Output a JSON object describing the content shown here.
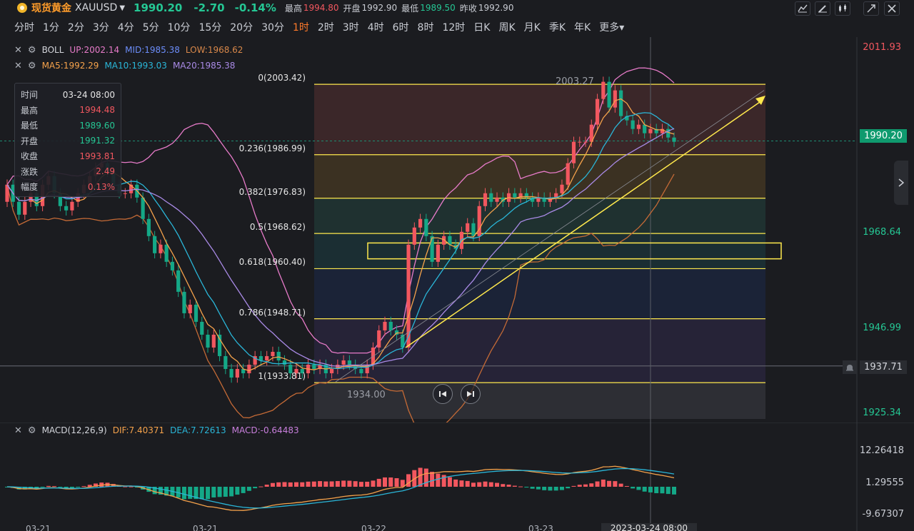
{
  "header": {
    "name": "现货黄金",
    "code": "XAUUSD",
    "price": "1990.20",
    "change": "-2.70",
    "change_pct": "-0.14%",
    "high_label": "最高",
    "high": "1994.80",
    "open_label": "开盘",
    "open": "1992.90",
    "low_label": "最低",
    "low": "1989.50",
    "prev_label": "昨收",
    "prev": "1992.90"
  },
  "timeframes": [
    "分时",
    "1分",
    "2分",
    "3分",
    "4分",
    "5分",
    "10分",
    "15分",
    "20分",
    "30分",
    "1时",
    "2时",
    "3时",
    "4时",
    "6时",
    "8时",
    "12时",
    "日K",
    "周K",
    "月K",
    "季K",
    "年K",
    "更多▾"
  ],
  "active_timeframe": "1时",
  "boll": {
    "name": "BOLL",
    "up": "UP:2002.14",
    "mid": "MID:1985.38",
    "low": "LOW:1968.62"
  },
  "ma": {
    "ma5": "MA5:1992.29",
    "ma10": "MA10:1993.03",
    "ma20": "MA20:1985.38"
  },
  "tooltip": {
    "rows": [
      {
        "k": "时间",
        "v": "03-24 08:00",
        "c": "#e6e6e6"
      },
      {
        "k": "最高",
        "v": "1994.48",
        "c": "#f2575f"
      },
      {
        "k": "最低",
        "v": "1989.60",
        "c": "#25c794"
      },
      {
        "k": "开盘",
        "v": "1991.32",
        "c": "#25c794"
      },
      {
        "k": "收盘",
        "v": "1993.81",
        "c": "#f2575f"
      },
      {
        "k": "涨跌",
        "v": "2.49",
        "c": "#f2575f"
      },
      {
        "k": "幅度",
        "v": "0.13%",
        "c": "#f2575f"
      }
    ]
  },
  "price_axis": [
    "2011.93",
    "1968.64",
    "1946.99",
    "1925.34"
  ],
  "current_price_tag": "1990.20",
  "line_price_tag": "1937.71",
  "high_mark": "2003.27",
  "low_mark": "1934.00",
  "macd": {
    "name": "MACD(12,26,9)",
    "dif": "DIF:7.40371",
    "dea": "DEA:7.72613",
    "macd": "MACD:-0.64483"
  },
  "macd_axis": [
    "12.26418",
    "1.29555",
    "-9.67307"
  ],
  "dates": [
    "03-21",
    "03-21",
    "03-22",
    "03-23"
  ],
  "crosshair_date": "2023-03-24 08:00",
  "colors": {
    "up": "#f2575f",
    "down": "#14a887",
    "ma5": "#f5a24b",
    "ma10": "#2ab6d8",
    "ma20": "#a98ae6",
    "fib": "#ffe94d",
    "boll_up": "#e77bc9",
    "boll_low": "#c46a36"
  },
  "chart_data": {
    "type": "candlestick",
    "title": "现货黄金 XAUUSD 1时",
    "ylim": [
      1925.34,
      2011.93
    ],
    "fibonacci": [
      {
        "ratio": "0",
        "price": 2003.42
      },
      {
        "ratio": "0.236",
        "price": 1986.99
      },
      {
        "ratio": "0.382",
        "price": 1976.83
      },
      {
        "ratio": "0.5",
        "price": 1968.62
      },
      {
        "ratio": "0.618",
        "price": 1960.4
      },
      {
        "ratio": "0.786",
        "price": 1948.71
      },
      {
        "ratio": "1",
        "price": 1933.81
      }
    ],
    "closes": [
      1980,
      1976,
      1973,
      1976,
      1978,
      1975,
      1980,
      1982,
      1978,
      1975,
      1974,
      1976,
      1978,
      1980,
      1982,
      1984,
      1985,
      1983,
      1980,
      1978,
      1978,
      1980,
      1977,
      1972,
      1968,
      1964,
      1966,
      1962,
      1960,
      1955,
      1950,
      1952,
      1948,
      1945,
      1942,
      1945,
      1940,
      1937,
      1935,
      1937,
      1936,
      1938,
      1940,
      1939,
      1940,
      1941,
      1939,
      1938,
      1936,
      1937,
      1936,
      1938,
      1937,
      1938,
      1936,
      1937,
      1938,
      1939,
      1938,
      1937,
      1936,
      1938,
      1942,
      1946,
      1948,
      1946,
      1945,
      1942,
      1966,
      1970,
      1972,
      1968,
      1962,
      1966,
      1968,
      1966,
      1965,
      1969,
      1971,
      1968,
      1975,
      1978,
      1976,
      1977,
      1976,
      1978,
      1977,
      1978,
      1977,
      1976,
      1977,
      1976,
      1977,
      1978,
      1980,
      1985,
      1990,
      1990,
      1990,
      1994,
      2000,
      2004,
      1998,
      2002,
      1996,
      1995,
      1993,
      1994,
      1992,
      1993,
      1992,
      1993,
      1991,
      1990
    ],
    "opens": [
      1976,
      1980,
      1976,
      1973,
      1976,
      1978,
      1975,
      1980,
      1982,
      1978,
      1975,
      1974,
      1976,
      1978,
      1980,
      1982,
      1984,
      1985,
      1983,
      1980,
      1978,
      1978,
      1980,
      1977,
      1972,
      1968,
      1964,
      1966,
      1962,
      1960,
      1955,
      1950,
      1952,
      1948,
      1945,
      1942,
      1945,
      1940,
      1937,
      1935,
      1937,
      1936,
      1938,
      1940,
      1939,
      1940,
      1941,
      1939,
      1938,
      1936,
      1937,
      1936,
      1938,
      1937,
      1938,
      1936,
      1937,
      1938,
      1939,
      1938,
      1937,
      1936,
      1938,
      1942,
      1946,
      1948,
      1946,
      1945,
      1942,
      1966,
      1970,
      1972,
      1968,
      1962,
      1966,
      1968,
      1966,
      1965,
      1969,
      1971,
      1968,
      1975,
      1978,
      1976,
      1977,
      1976,
      1978,
      1977,
      1978,
      1977,
      1976,
      1977,
      1976,
      1977,
      1978,
      1980,
      1985,
      1990,
      1990,
      1990,
      1994,
      2000,
      2004,
      1998,
      2002,
      1996,
      1995,
      1993,
      1994,
      1992,
      1993,
      1992,
      1993,
      1991
    ]
  }
}
